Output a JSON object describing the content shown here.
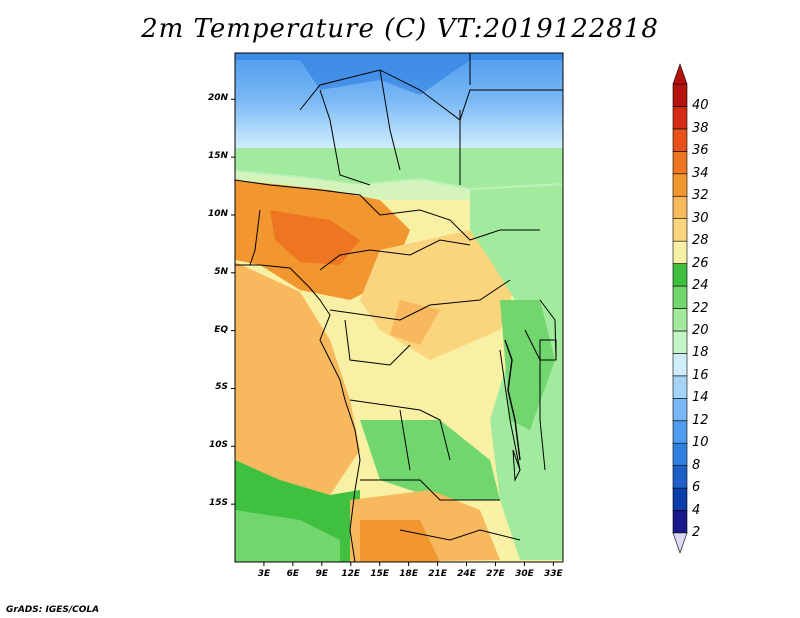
{
  "title": "2m Temperature (C) VT:2019122818",
  "footer": "GrADS: IGES/COLA",
  "map": {
    "lon_range": [
      0,
      34
    ],
    "lat_range": [
      -20,
      24
    ],
    "x_ticks": [
      "3E",
      "6E",
      "9E",
      "12E",
      "15E",
      "18E",
      "21E",
      "24E",
      "27E",
      "30E",
      "33E"
    ],
    "y_ticks": [
      "20N",
      "15N",
      "10N",
      "5N",
      "EQ",
      "5S",
      "10S",
      "15S"
    ]
  },
  "colorbar": {
    "levels": [
      "2",
      "4",
      "6",
      "8",
      "10",
      "12",
      "14",
      "16",
      "18",
      "20",
      "22",
      "24",
      "26",
      "28",
      "30",
      "32",
      "34",
      "36",
      "38",
      "40"
    ],
    "colors": [
      "#1a1a8c",
      "#0a3caa",
      "#1e5fc8",
      "#2f7fe0",
      "#4f9cf0",
      "#7ab8f5",
      "#a6d4f8",
      "#cfeefc",
      "#c6f5c6",
      "#a2eb9e",
      "#72d66e",
      "#3fc03f",
      "#f8f0a4",
      "#fbd47e",
      "#f7b85e",
      "#f2972f",
      "#ee7620",
      "#e7521a",
      "#d52a14",
      "#b4120e"
    ],
    "under_color": "#ddd8f5",
    "over_color": "#b4120e"
  }
}
